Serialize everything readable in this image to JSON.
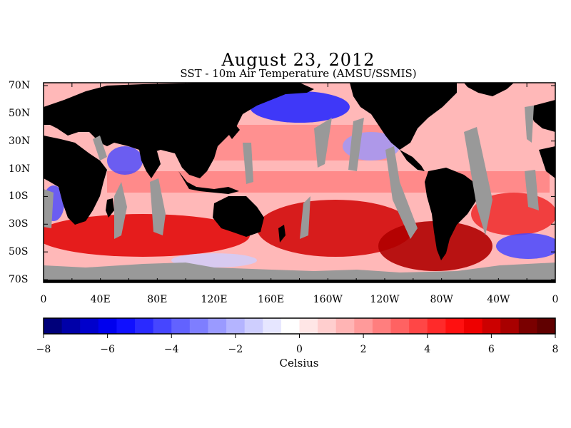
{
  "title": "August 23, 2012",
  "subtitle": "SST - 10m Air Temperature (AMSU/SSMIS)",
  "lat_labels": [
    "70N",
    "50N",
    "30N",
    "10N",
    "10S",
    "30S",
    "50S",
    "70S"
  ],
  "lon_labels": [
    "0",
    "40E",
    "80E",
    "120E",
    "160E",
    "160W",
    "120W",
    "80W",
    "40W",
    "0"
  ],
  "colorbar": {
    "ticks": [
      "-8",
      "-6",
      "-4",
      "-2",
      "0",
      "2",
      "4",
      "6",
      "8"
    ],
    "unit": "Celsius",
    "range": [
      -8,
      8
    ],
    "colors": [
      "#00007a",
      "#0000a8",
      "#0000cc",
      "#0000ee",
      "#1010ff",
      "#2a2aff",
      "#4646ff",
      "#6262ff",
      "#7e7eff",
      "#9a9aff",
      "#b4b4ff",
      "#cecefe",
      "#e6e6ff",
      "#ffffff",
      "#ffe6e6",
      "#ffcece",
      "#ffb4b4",
      "#ff9a9a",
      "#ff7e7e",
      "#ff6262",
      "#ff4646",
      "#ff2a2a",
      "#ff1010",
      "#ee0000",
      "#cc0000",
      "#a80000",
      "#7a0000",
      "#600000"
    ]
  },
  "colors": {
    "land": "#000000",
    "no_data": "#999999",
    "warm": "#ff3333",
    "cold": "#3333ff"
  }
}
